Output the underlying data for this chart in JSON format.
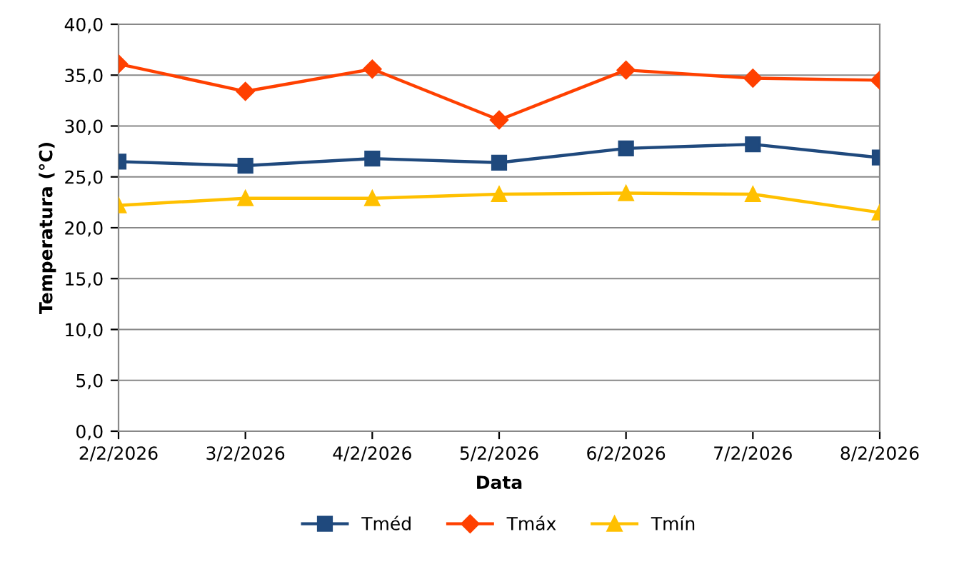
{
  "chart_data": {
    "type": "line",
    "xlabel": "Data",
    "ylabel": "Temperatura (°C)",
    "categories": [
      "2/2/2026",
      "3/2/2026",
      "4/2/2026",
      "5/2/2026",
      "6/2/2026",
      "7/2/2026",
      "8/2/2026"
    ],
    "series": [
      {
        "name": "Tméd",
        "color": "#1f497d",
        "marker": "square",
        "values": [
          26.5,
          26.1,
          26.8,
          26.4,
          27.8,
          28.2,
          26.9
        ]
      },
      {
        "name": "Tmáx",
        "color": "#ff4000",
        "marker": "diamond",
        "values": [
          36.1,
          33.4,
          35.6,
          30.6,
          35.5,
          34.7,
          34.5
        ]
      },
      {
        "name": "Tmín",
        "color": "#ffc000",
        "marker": "triangle",
        "values": [
          22.2,
          22.9,
          22.9,
          23.3,
          23.4,
          23.3,
          21.5
        ]
      }
    ],
    "ylim": [
      0,
      40
    ],
    "yticks": [
      {
        "value": 0,
        "label": "0,0"
      },
      {
        "value": 5,
        "label": "5,0"
      },
      {
        "value": 10,
        "label": "10,0"
      },
      {
        "value": 15,
        "label": "15,0"
      },
      {
        "value": 20,
        "label": "20,0"
      },
      {
        "value": 25,
        "label": "25,0"
      },
      {
        "value": 30,
        "label": "30,0"
      },
      {
        "value": 35,
        "label": "35,0"
      },
      {
        "value": 40,
        "label": "40,0"
      }
    ],
    "grid": "y",
    "legend": "bottom",
    "line_style": "solid"
  }
}
